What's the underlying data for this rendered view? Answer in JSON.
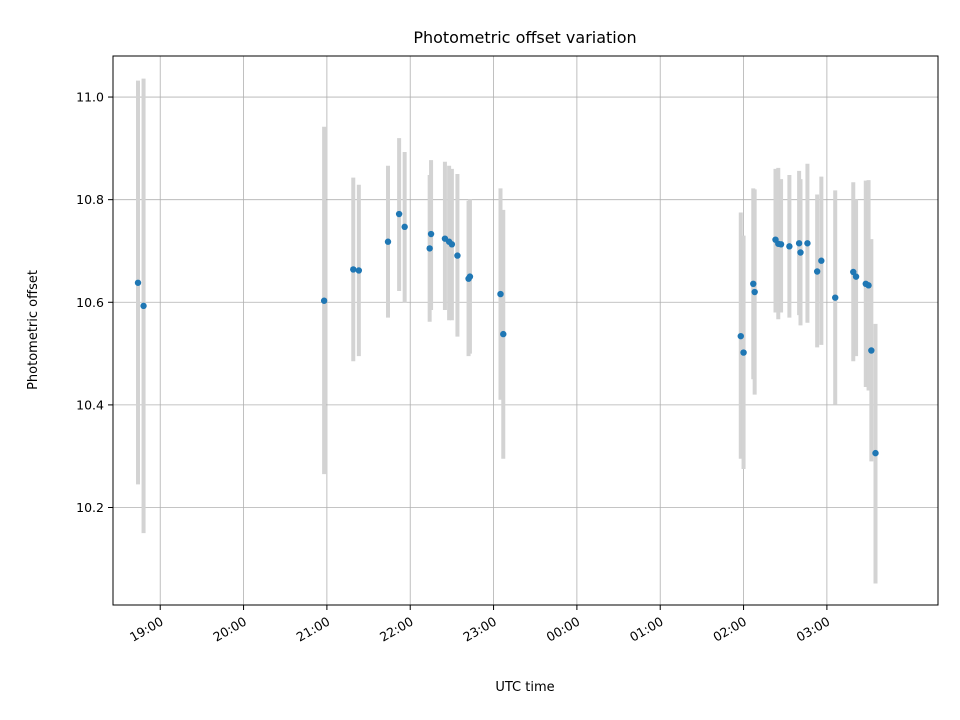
{
  "chart_data": {
    "type": "scatter",
    "title": "Photometric offset variation",
    "xlabel": "UTC time",
    "ylabel": "Photometric offset",
    "xlim": [
      "18:26",
      "04:20"
    ],
    "ylim": [
      10.01,
      11.08
    ],
    "x_ticks": [
      "19:00",
      "20:00",
      "21:00",
      "22:00",
      "23:00",
      "00:00",
      "01:00",
      "02:00",
      "03:00"
    ],
    "y_ticks": [
      10.2,
      10.4,
      10.6,
      10.8,
      11.0
    ],
    "y_tick_labels": [
      "10.2",
      "10.4",
      "10.6",
      "10.8",
      "11.0"
    ],
    "grid": true,
    "point_color": "#1f77b4",
    "errorbar_color": "#d3d3d3",
    "points": [
      {
        "x": "18:44",
        "y": 10.638,
        "ylow": 10.245,
        "yhigh": 11.032
      },
      {
        "x": "18:48",
        "y": 10.593,
        "ylow": 10.15,
        "yhigh": 11.036
      },
      {
        "x": "20:58",
        "y": 10.603,
        "ylow": 10.265,
        "yhigh": 10.942
      },
      {
        "x": "21:19",
        "y": 10.664,
        "ylow": 10.485,
        "yhigh": 10.843
      },
      {
        "x": "21:23",
        "y": 10.662,
        "ylow": 10.495,
        "yhigh": 10.829
      },
      {
        "x": "21:44",
        "y": 10.718,
        "ylow": 10.57,
        "yhigh": 10.866
      },
      {
        "x": "21:52",
        "y": 10.772,
        "ylow": 10.622,
        "yhigh": 10.92
      },
      {
        "x": "21:56",
        "y": 10.747,
        "ylow": 10.6,
        "yhigh": 10.893
      },
      {
        "x": "22:14",
        "y": 10.705,
        "ylow": 10.562,
        "yhigh": 10.848
      },
      {
        "x": "22:15",
        "y": 10.733,
        "ylow": 10.585,
        "yhigh": 10.877
      },
      {
        "x": "22:25",
        "y": 10.724,
        "ylow": 10.585,
        "yhigh": 10.874
      },
      {
        "x": "22:28",
        "y": 10.718,
        "ylow": 10.565,
        "yhigh": 10.866
      },
      {
        "x": "22:30",
        "y": 10.713,
        "ylow": 10.565,
        "yhigh": 10.86
      },
      {
        "x": "22:34",
        "y": 10.691,
        "ylow": 10.533,
        "yhigh": 10.85
      },
      {
        "x": "22:42",
        "y": 10.646,
        "ylow": 10.495,
        "yhigh": 10.798
      },
      {
        "x": "22:43",
        "y": 10.65,
        "ylow": 10.5,
        "yhigh": 10.8
      },
      {
        "x": "23:05",
        "y": 10.616,
        "ylow": 10.41,
        "yhigh": 10.822
      },
      {
        "x": "23:07",
        "y": 10.538,
        "ylow": 10.295,
        "yhigh": 10.78
      },
      {
        "x": "01:58",
        "y": 10.534,
        "ylow": 10.295,
        "yhigh": 10.775
      },
      {
        "x": "02:00",
        "y": 10.502,
        "ylow": 10.275,
        "yhigh": 10.73
      },
      {
        "x": "02:07",
        "y": 10.636,
        "ylow": 10.45,
        "yhigh": 10.822
      },
      {
        "x": "02:08",
        "y": 10.62,
        "ylow": 10.42,
        "yhigh": 10.82
      },
      {
        "x": "02:23",
        "y": 10.722,
        "ylow": 10.58,
        "yhigh": 10.86
      },
      {
        "x": "02:25",
        "y": 10.714,
        "ylow": 10.567,
        "yhigh": 10.862
      },
      {
        "x": "02:27",
        "y": 10.713,
        "ylow": 10.58,
        "yhigh": 10.84
      },
      {
        "x": "02:33",
        "y": 10.709,
        "ylow": 10.57,
        "yhigh": 10.848
      },
      {
        "x": "02:40",
        "y": 10.715,
        "ylow": 10.575,
        "yhigh": 10.856
      },
      {
        "x": "02:41",
        "y": 10.697,
        "ylow": 10.555,
        "yhigh": 10.84
      },
      {
        "x": "02:46",
        "y": 10.715,
        "ylow": 10.56,
        "yhigh": 10.87
      },
      {
        "x": "02:53",
        "y": 10.66,
        "ylow": 10.512,
        "yhigh": 10.81
      },
      {
        "x": "02:56",
        "y": 10.681,
        "ylow": 10.517,
        "yhigh": 10.845
      },
      {
        "x": "03:06",
        "y": 10.609,
        "ylow": 10.4,
        "yhigh": 10.818
      },
      {
        "x": "03:19",
        "y": 10.659,
        "ylow": 10.485,
        "yhigh": 10.834
      },
      {
        "x": "03:21",
        "y": 10.65,
        "ylow": 10.495,
        "yhigh": 10.8
      },
      {
        "x": "03:28",
        "y": 10.636,
        "ylow": 10.435,
        "yhigh": 10.837
      },
      {
        "x": "03:30",
        "y": 10.633,
        "ylow": 10.428,
        "yhigh": 10.838
      },
      {
        "x": "03:32",
        "y": 10.506,
        "ylow": 10.29,
        "yhigh": 10.723
      },
      {
        "x": "03:35",
        "y": 10.306,
        "ylow": 10.052,
        "yhigh": 10.558
      }
    ]
  }
}
